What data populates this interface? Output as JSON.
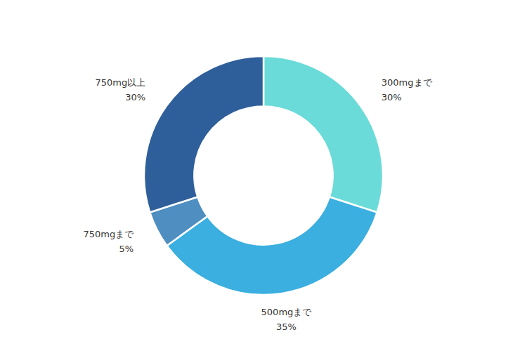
{
  "chart_data": {
    "type": "donut",
    "categories": [
      "300mgまで",
      "500mgまで",
      "750mgまで",
      "750mg以上"
    ],
    "values": [
      30,
      35,
      5,
      30
    ],
    "value_labels": [
      "30%",
      "35%",
      "5%",
      "30%"
    ],
    "colors": [
      "#6ADBD8",
      "#3AAFE0",
      "#4E8EC0",
      "#2E5F9A"
    ],
    "data_labels": true
  }
}
